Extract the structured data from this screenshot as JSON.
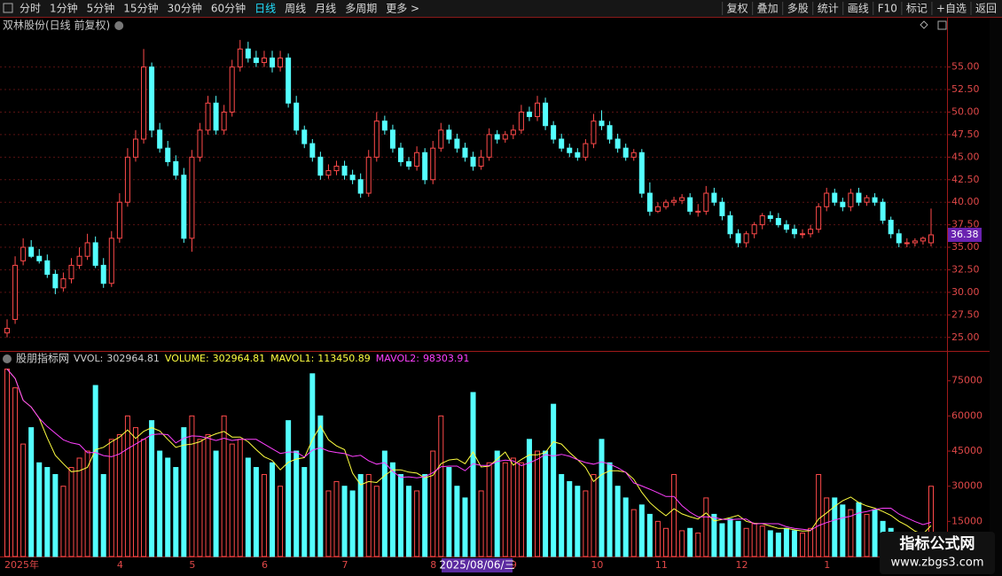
{
  "toolbar": {
    "left": [
      "分时",
      "1分钟",
      "5分钟",
      "15分钟",
      "30分钟",
      "60分钟",
      "日线",
      "周线",
      "月线",
      "多周期",
      "更多 >"
    ],
    "selected_tab": 6,
    "right": [
      "复权",
      "叠加",
      "多股",
      "统计",
      "画线",
      "F10",
      "标记",
      "+自选",
      "返回"
    ]
  },
  "cursor_label": "2025/08/06/三",
  "watermark": {
    "title": "指标公式网",
    "url": "www.zbgs3.com"
  },
  "chart_data": {
    "type": "candlestick",
    "title": "双林股份(日线 前复权)",
    "up_color": "#ff4a4a",
    "down_color": "#54ffff",
    "grid": true,
    "categories": [
      "2025年",
      null,
      null,
      null,
      null,
      null,
      null,
      null,
      null,
      null,
      null,
      null,
      null,
      null,
      "4",
      null,
      null,
      null,
      null,
      null,
      null,
      null,
      null,
      "5",
      null,
      null,
      null,
      null,
      null,
      null,
      null,
      null,
      "6",
      null,
      null,
      null,
      null,
      null,
      null,
      null,
      null,
      null,
      "7",
      null,
      null,
      null,
      null,
      null,
      null,
      null,
      null,
      null,
      null,
      "8",
      null,
      null,
      null,
      null,
      null,
      null,
      null,
      null,
      null,
      "9",
      null,
      null,
      null,
      null,
      null,
      null,
      null,
      null,
      null,
      "10",
      null,
      null,
      null,
      null,
      null,
      null,
      null,
      "11",
      null,
      null,
      null,
      null,
      null,
      null,
      null,
      null,
      null,
      "12",
      null,
      null,
      null,
      null,
      null,
      null,
      null,
      null,
      null,
      null,
      "1",
      null,
      null,
      null,
      null,
      null,
      null,
      null,
      null,
      null,
      null,
      null,
      null,
      null
    ],
    "open": [
      25.5,
      27,
      33.5,
      35,
      34,
      33.5,
      32,
      30.5,
      31.5,
      33,
      34,
      35.5,
      33,
      31,
      36,
      40,
      45,
      47,
      55,
      48,
      46,
      44.5,
      43,
      36,
      45,
      48,
      51,
      48,
      50,
      55,
      57,
      56,
      55.5,
      56,
      55,
      56,
      51,
      48,
      46.5,
      45,
      43,
      43.5,
      44,
      43,
      42.5,
      41,
      45,
      49,
      48,
      46,
      44.5,
      44,
      45.5,
      42.5,
      46,
      48,
      47,
      46,
      45,
      44,
      45,
      47.5,
      47,
      47.5,
      48,
      50,
      49.5,
      51,
      48.5,
      47,
      46,
      45.5,
      45,
      46.5,
      49,
      48.5,
      47,
      46,
      45,
      45.5,
      41,
      39,
      39.5,
      40,
      40.2,
      40.5,
      39,
      39,
      41,
      40,
      38.5,
      36.5,
      35.5,
      36.5,
      37.5,
      38.5,
      38.2,
      37.5,
      37,
      36.5,
      36.5,
      37,
      39.5,
      41,
      40,
      39.5,
      41,
      40,
      40.5,
      40,
      38,
      36.5,
      35.5,
      35.5,
      35.7,
      35.5
    ],
    "high": [
      27,
      34,
      36,
      35.8,
      34.8,
      34.2,
      32.5,
      32.2,
      33.8,
      35,
      36.5,
      36.2,
      33.8,
      36.8,
      41,
      46,
      48,
      57,
      55.5,
      48.8,
      46.8,
      45.2,
      43.8,
      45.8,
      48.8,
      51.8,
      51.8,
      50.8,
      55.8,
      58,
      57.8,
      56.8,
      56.8,
      56.8,
      56.8,
      56.5,
      51.8,
      48.5,
      47,
      45.6,
      44.2,
      44.6,
      44.6,
      43.6,
      43.2,
      45.8,
      50,
      49.6,
      48.6,
      46.6,
      45,
      46.2,
      46,
      46.8,
      48.8,
      48.6,
      47.6,
      46.6,
      45.6,
      45.8,
      48.2,
      48,
      47.9,
      48.6,
      50.8,
      50.6,
      51.8,
      51.6,
      49,
      47.6,
      46.5,
      46,
      47,
      49.8,
      50.2,
      49,
      47.6,
      46.5,
      45.9,
      45.9,
      42.2,
      40,
      40.3,
      40.6,
      40.9,
      41,
      39.8,
      41.8,
      41.6,
      40.5,
      39,
      37,
      36.8,
      37.8,
      38.8,
      39,
      38.8,
      38,
      37.5,
      37,
      37.5,
      39.9,
      41.6,
      41.5,
      40.5,
      41.5,
      41.6,
      40.8,
      41,
      40.4,
      38.4,
      37,
      36,
      36,
      36.2,
      39.3
    ],
    "low": [
      25,
      26.5,
      33,
      33.8,
      33.2,
      31.6,
      29.8,
      30.1,
      31,
      32.6,
      33.6,
      32.7,
      30.5,
      30.6,
      35.5,
      39.5,
      44.5,
      46.5,
      47.2,
      45.5,
      44,
      42.5,
      35.5,
      34.5,
      44.5,
      47.5,
      47.5,
      47.5,
      49.5,
      54.5,
      55.5,
      55,
      55,
      54.4,
      54.5,
      50.5,
      47.5,
      46,
      44.5,
      42.5,
      42.6,
      43,
      42.5,
      42,
      40.5,
      40.6,
      44.5,
      47.5,
      45.5,
      44,
      43.6,
      43.5,
      42,
      42,
      45.6,
      46.5,
      45.5,
      44.5,
      43.5,
      43.6,
      44.6,
      46.5,
      46.6,
      47,
      47.6,
      49,
      49,
      48,
      46.5,
      45.6,
      45,
      44.6,
      44.6,
      46,
      48,
      46.5,
      45.5,
      44.6,
      44.6,
      40.5,
      38.5,
      38.8,
      39.2,
      39.6,
      39.8,
      38.6,
      38.4,
      38.6,
      39.6,
      38,
      36,
      35,
      35,
      36,
      37,
      37.8,
      37.2,
      36.6,
      36,
      36,
      36.1,
      36.6,
      39,
      39.6,
      39,
      39,
      39.6,
      39.6,
      39.6,
      37.6,
      36,
      35,
      35,
      35.1,
      35.3,
      35.1
    ],
    "close": [
      26,
      33,
      35,
      34,
      33.5,
      32,
      30.5,
      31.5,
      33,
      34,
      35.5,
      33,
      31,
      36,
      40,
      45,
      47,
      55,
      48,
      46,
      44.5,
      43,
      36,
      45,
      48,
      51,
      48,
      50,
      55,
      57,
      56,
      55.5,
      56,
      55,
      56,
      51,
      48,
      46.5,
      45,
      43,
      43.5,
      44,
      43,
      42.5,
      41,
      45,
      49,
      48,
      46,
      44.5,
      44,
      45.5,
      42.5,
      46,
      48,
      47,
      46,
      45,
      44,
      45,
      47.5,
      47,
      47.5,
      48,
      50,
      49.5,
      51,
      48.5,
      47,
      46,
      45.5,
      45,
      46.5,
      49,
      48.5,
      47,
      46,
      45,
      45.5,
      41,
      39,
      39.5,
      40,
      40.2,
      40.5,
      39,
      39,
      41,
      40,
      38.5,
      36.5,
      35.5,
      36.5,
      37.5,
      38.5,
      38.2,
      37.5,
      37,
      36.5,
      36.5,
      37,
      39.5,
      41,
      40,
      39.5,
      41,
      40,
      40.5,
      40,
      38,
      36.5,
      35.5,
      35.5,
      35.7,
      36,
      36.38
    ],
    "ylim": [
      23.6,
      58.7
    ],
    "yticks": [
      {
        "value": 25,
        "label": "25.00"
      },
      {
        "value": 27.5,
        "label": "27.50"
      },
      {
        "value": 30,
        "label": "30.00"
      },
      {
        "value": 32.5,
        "label": "32.50"
      },
      {
        "value": 35,
        "label": "35.00"
      },
      {
        "value": 37.5,
        "label": "37.50"
      },
      {
        "value": 40,
        "label": "40.00"
      },
      {
        "value": 42.5,
        "label": "42.50"
      },
      {
        "value": 45,
        "label": "45.00"
      },
      {
        "value": 47.5,
        "label": "47.50"
      },
      {
        "value": 50,
        "label": "50.00"
      },
      {
        "value": 52.5,
        "label": "52.50"
      },
      {
        "value": 55,
        "label": "55.00"
      }
    ],
    "volume": {
      "type": "bar",
      "title": "股朋指标网",
      "readouts": [
        {
          "label": "VVOL:",
          "value": 302964.81,
          "color": "#d0d0d0"
        },
        {
          "label": "VOLUME:",
          "value": 302964.81,
          "color": "#ffff40"
        },
        {
          "label": "MAVOL1:",
          "value": 113450.89,
          "color": "#ffff40"
        },
        {
          "label": "MAVOL2:",
          "value": 98303.91,
          "color": "#ff40ff"
        }
      ],
      "values": [
        80000,
        72000,
        48000,
        55000,
        40000,
        38000,
        35000,
        30000,
        38000,
        42000,
        45000,
        73000,
        35000,
        50000,
        52000,
        60000,
        55000,
        50000,
        58000,
        45000,
        42000,
        38000,
        55000,
        60000,
        50000,
        52000,
        45000,
        60000,
        48000,
        50000,
        42000,
        38000,
        35000,
        40000,
        30000,
        58000,
        45000,
        38000,
        78000,
        60000,
        28000,
        32000,
        30000,
        28000,
        35000,
        35000,
        30000,
        45000,
        40000,
        35000,
        30000,
        28000,
        35000,
        45000,
        60000,
        38000,
        30000,
        25000,
        70000,
        28000,
        40000,
        45000,
        40000,
        42000,
        40000,
        50000,
        45000,
        45000,
        65000,
        35000,
        32000,
        30000,
        28000,
        35000,
        50000,
        40000,
        30000,
        25000,
        20000,
        22000,
        18000,
        15000,
        12000,
        35000,
        11000,
        12000,
        10000,
        25000,
        18000,
        14000,
        16000,
        15000,
        12000,
        14000,
        13000,
        11000,
        10000,
        12000,
        11000,
        10000,
        12000,
        35000,
        25000,
        25000,
        22000,
        20000,
        23000,
        18000,
        20000,
        15000,
        12000,
        10000,
        9000,
        8000,
        9000,
        30000
      ],
      "ylim": [
        0,
        87000
      ],
      "yticks": [
        15000,
        30000,
        45000,
        60000,
        75000
      ],
      "series": [
        {
          "name": "MAVOL1",
          "color": "#ffff40",
          "values": [
            80000,
            76000,
            66700,
            63800,
            59000,
            50600,
            43200,
            39600,
            36200,
            36600,
            38000,
            45600,
            46600,
            49000,
            51000,
            54000,
            50400,
            53400,
            55000,
            53600,
            50000,
            46600,
            47600,
            48000,
            49000,
            51000,
            52400,
            53400,
            51000,
            51000,
            49000,
            45600,
            42600,
            41000,
            37000,
            40200,
            41600,
            42200,
            49800,
            55800,
            49800,
            47200,
            45600,
            35600,
            30600,
            32000,
            31600,
            34600,
            37000,
            37000,
            36000,
            35600,
            33600,
            34600,
            39600,
            41200,
            41600,
            39600,
            44600,
            38200,
            38600,
            41600,
            44600,
            39000,
            41400,
            43400,
            43400,
            44400,
            49000,
            48000,
            44400,
            41400,
            38000,
            32000,
            35000,
            36600,
            36600,
            36000,
            33000,
            27400,
            23000,
            20000,
            17400,
            20400,
            18200,
            17000,
            16000,
            18600,
            15200,
            15800,
            16600,
            17600,
            15000,
            14200,
            14000,
            13000,
            12000,
            12000,
            11400,
            10800,
            11000,
            16000,
            18600,
            21400,
            23800,
            25400,
            23000,
            21600,
            20600,
            19200,
            17600,
            15000,
            13200,
            10800,
            9600,
            13200
          ]
        },
        {
          "name": "MAVOL2",
          "color": "#ff40ff",
          "values": [
            80000,
            76000,
            66700,
            63800,
            59000,
            55500,
            52600,
            49800,
            48500,
            47800,
            44300,
            44400,
            43100,
            42600,
            43800,
            46000,
            48000,
            50000,
            52000,
            52300,
            52000,
            48500,
            50500,
            51500,
            51300,
            50500,
            49500,
            50500,
            49500,
            50000,
            50000,
            50000,
            48000,
            46000,
            44000,
            44600,
            44600,
            42400,
            45400,
            46400,
            45000,
            44400,
            43900,
            42700,
            43200,
            40900,
            39400,
            40100,
            36300,
            33800,
            34000,
            33600,
            34100,
            35800,
            38300,
            38600,
            38600,
            36600,
            39600,
            38900,
            38900,
            40600,
            41100,
            40800,
            38800,
            40000,
            41500,
            43500,
            42900,
            43600,
            42800,
            41300,
            40100,
            39400,
            40400,
            39400,
            37900,
            35900,
            31400,
            30100,
            28700,
            27200,
            25600,
            25600,
            21700,
            18900,
            16900,
            16900,
            16700,
            15900,
            15700,
            16000,
            16000,
            13900,
            14100,
            14000,
            14000,
            12700,
            12000,
            11600,
            11200,
            13200,
            14500,
            15600,
            16500,
            17200,
            18600,
            19200,
            20100,
            20600,
            20600,
            18100,
            16500,
            14900,
            13600,
            14600
          ]
        }
      ]
    }
  }
}
